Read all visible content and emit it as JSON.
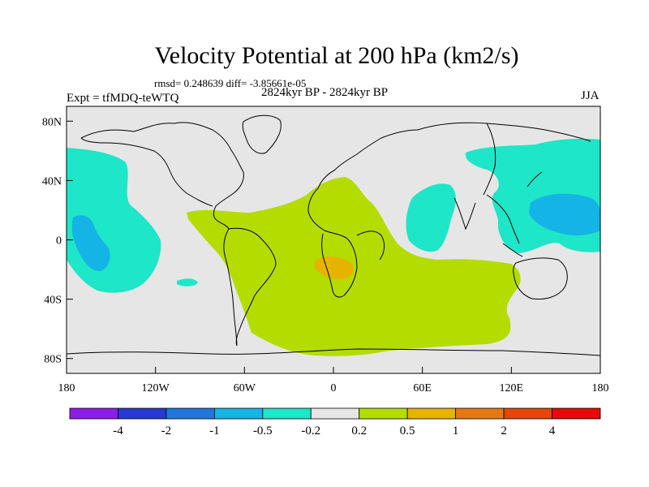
{
  "title": "Velocity Potential at 200 hPa (km2/s)",
  "stats": "rmsd= 0.248639 diff= -3.85661e-05",
  "experiment": "Expt = tfMDQ-teWTQ",
  "period": "2824kyr BP - 2824kyr BP",
  "season": "JJA",
  "map": {
    "lon_range": [
      -180,
      180
    ],
    "lat_range": [
      -90,
      90
    ],
    "x_ticks": [
      {
        "lon": -180,
        "label": "180"
      },
      {
        "lon": -120,
        "label": "120W"
      },
      {
        "lon": -60,
        "label": "60W"
      },
      {
        "lon": 0,
        "label": "0"
      },
      {
        "lon": 60,
        "label": "60E"
      },
      {
        "lon": 120,
        "label": "120E"
      },
      {
        "lon": 180,
        "label": "180"
      }
    ],
    "y_ticks": [
      {
        "lat": 80,
        "label": "80N"
      },
      {
        "lat": 40,
        "label": "40N"
      },
      {
        "lat": 0,
        "label": "0"
      },
      {
        "lat": -40,
        "label": "40S"
      },
      {
        "lat": -80,
        "label": "80S"
      }
    ],
    "background_color": "#e6e6e6"
  },
  "colorbar": {
    "colors": [
      "#8c1ee6",
      "#2838d2",
      "#1e78dc",
      "#14b4e6",
      "#1ee6c8",
      "#e6e6e6",
      "#b4dc00",
      "#e6b400",
      "#e67814",
      "#e6460a",
      "#e60a0a"
    ],
    "labels": [
      "-4",
      "-2",
      "-1",
      "-0.5",
      "-0.2",
      "0.2",
      "0.5",
      "1",
      "2",
      "4"
    ]
  }
}
